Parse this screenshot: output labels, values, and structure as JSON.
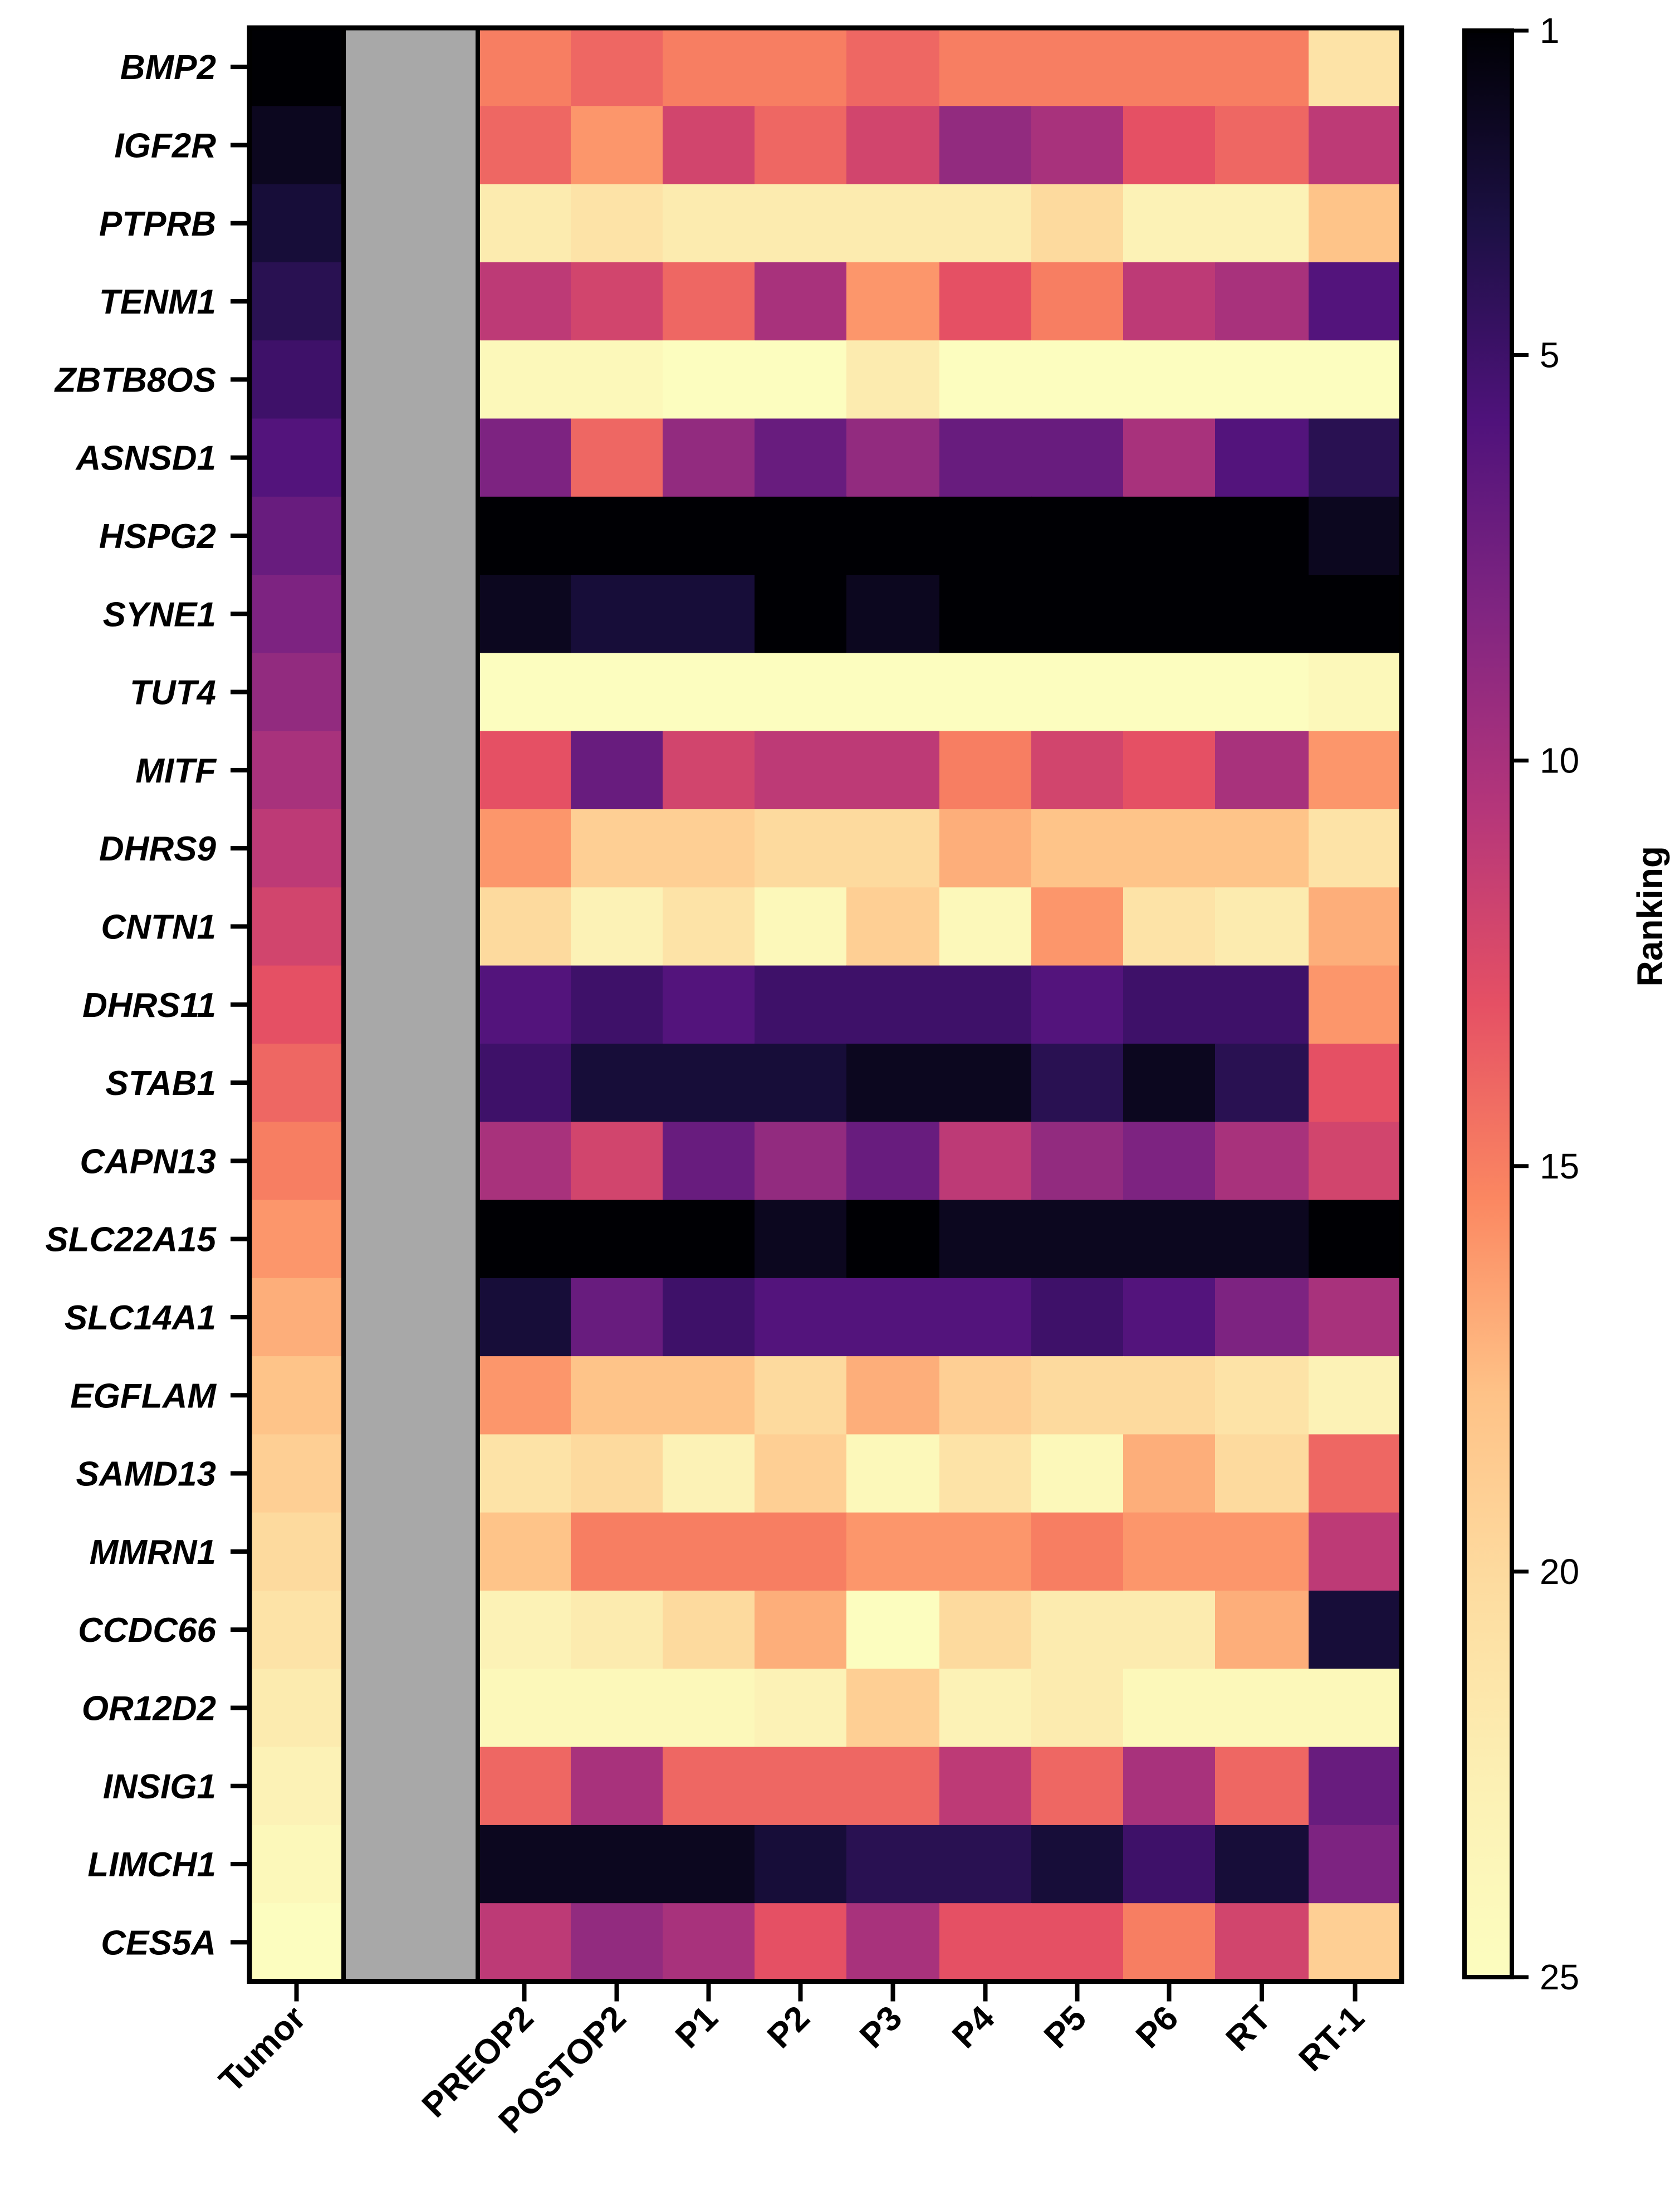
{
  "chart_data": {
    "type": "heatmap",
    "title": "",
    "rows": [
      "BMP2",
      "IGF2R",
      "PTPRB",
      "TENM1",
      "ZBTB8OS",
      "ASNSD1",
      "HSPG2",
      "SYNE1",
      "TUT4",
      "MITF",
      "DHRS9",
      "CNTN1",
      "DHRS11",
      "STAB1",
      "CAPN13",
      "SLC22A15",
      "SLC14A1",
      "EGFLAM",
      "SAMD13",
      "MMRN1",
      "CCDC66",
      "OR12D2",
      "INSIG1",
      "LIMCH1",
      "CES5A"
    ],
    "columns": [
      "Tumor",
      "",
      "PREOP2",
      "POSTOP2",
      "P1",
      "P2",
      "P3",
      "P4",
      "P5",
      "P6",
      "RT",
      "RT-1"
    ],
    "missing_color": "#a8a8a8",
    "values": [
      [
        1,
        null,
        15,
        14,
        15,
        15,
        14,
        15,
        15,
        15,
        15,
        21
      ],
      [
        2,
        null,
        14,
        16,
        12,
        14,
        12,
        9,
        10,
        13,
        14,
        11
      ],
      [
        3,
        null,
        22,
        21,
        22,
        22,
        22,
        22,
        20,
        23,
        23,
        18
      ],
      [
        4,
        null,
        11,
        12,
        14,
        10,
        16,
        13,
        15,
        11,
        10,
        6
      ],
      [
        5,
        null,
        24,
        24,
        25,
        25,
        22,
        25,
        25,
        25,
        25,
        25
      ],
      [
        6,
        null,
        8,
        14,
        9,
        7,
        9,
        7,
        7,
        10,
        6,
        4
      ],
      [
        7,
        null,
        1,
        1,
        1,
        1,
        1,
        1,
        1,
        1,
        1,
        2
      ],
      [
        8,
        null,
        2,
        3,
        3,
        1,
        2,
        1,
        1,
        1,
        1,
        1
      ],
      [
        9,
        null,
        25,
        25,
        25,
        25,
        25,
        25,
        25,
        25,
        25,
        24
      ],
      [
        10,
        null,
        13,
        7,
        12,
        11,
        11,
        15,
        12,
        13,
        10,
        16
      ],
      [
        11,
        null,
        16,
        19,
        19,
        20,
        20,
        17,
        18,
        18,
        18,
        21
      ],
      [
        12,
        null,
        20,
        23,
        21,
        24,
        19,
        24,
        16,
        21,
        22,
        17
      ],
      [
        13,
        null,
        6,
        5,
        6,
        5,
        5,
        5,
        6,
        5,
        5,
        16
      ],
      [
        14,
        null,
        5,
        3,
        3,
        3,
        2,
        2,
        4,
        2,
        4,
        13
      ],
      [
        15,
        null,
        10,
        12,
        7,
        9,
        7,
        11,
        9,
        8,
        10,
        12
      ],
      [
        16,
        null,
        1,
        1,
        1,
        2,
        1,
        2,
        2,
        2,
        2,
        1
      ],
      [
        17,
        null,
        3,
        7,
        5,
        6,
        6,
        6,
        5,
        6,
        8,
        10
      ],
      [
        18,
        null,
        16,
        18,
        18,
        20,
        17,
        19,
        20,
        20,
        21,
        23
      ],
      [
        19,
        null,
        21,
        20,
        23,
        19,
        24,
        21,
        24,
        17,
        20,
        14
      ],
      [
        20,
        null,
        18,
        15,
        15,
        15,
        16,
        16,
        15,
        16,
        16,
        11
      ],
      [
        21,
        null,
        23,
        22,
        20,
        17,
        25,
        20,
        22,
        22,
        17,
        3
      ],
      [
        22,
        null,
        24,
        24,
        24,
        23,
        19,
        23,
        22,
        24,
        24,
        24
      ],
      [
        23,
        null,
        14,
        10,
        14,
        14,
        14,
        11,
        14,
        10,
        14,
        7
      ],
      [
        24,
        null,
        2,
        2,
        2,
        3,
        4,
        4,
        3,
        5,
        3,
        8
      ],
      [
        25,
        null,
        11,
        9,
        10,
        13,
        10,
        13,
        13,
        15,
        12,
        19
      ]
    ],
    "colorbar": {
      "label": "Ranking",
      "min": 1,
      "max": 25,
      "ticks": [
        1,
        5,
        10,
        15,
        20,
        25
      ],
      "colormap": "magma",
      "reversed": true
    }
  }
}
